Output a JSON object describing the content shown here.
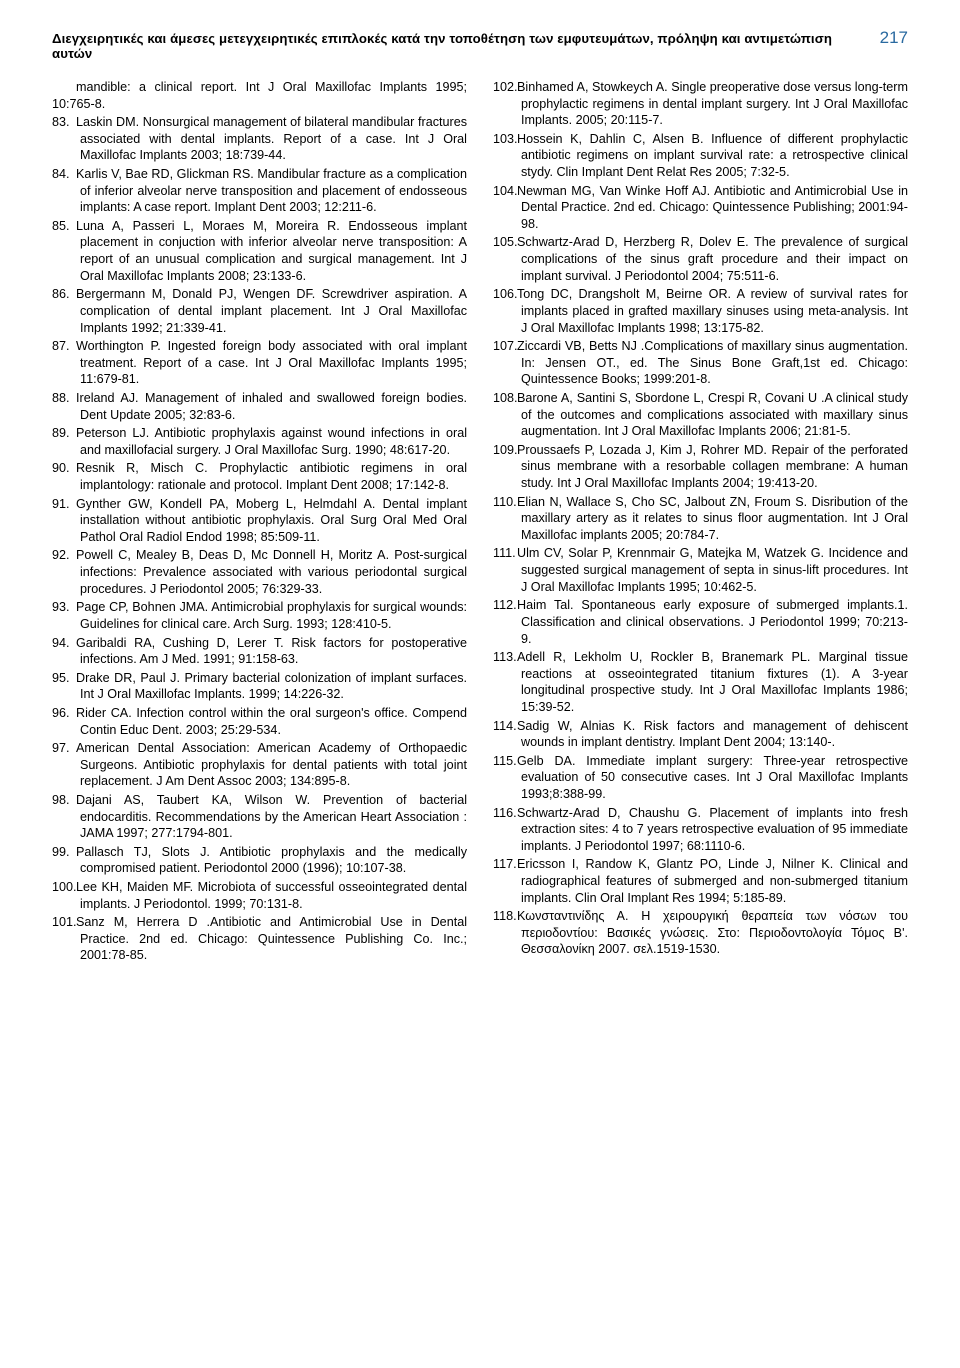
{
  "header": {
    "title": "Διεγχειρητικές και άμεσες μετεγχειρητικές επιπλοκές κατά την τοποθέτηση των εμφυτευμάτων, πρόληψη και  αντιμετώπιση αυτών",
    "page_number": "217"
  },
  "lead": "mandible: a clinical report. Int J Oral Maxillofac Implants 1995; 10:765-8.",
  "references": [
    {
      "n": "83.",
      "t": "Laskin DM. Nonsurgical management of bilateral mandibular fractures associated with dental implants. Report of a case. Int J Oral Maxillofac Implants 2003; 18:739-44."
    },
    {
      "n": "84.",
      "t": "Karlis V, Bae RD, Glickman RS. Mandibular fracture as a complication of inferior alveolar nerve transposition and placement of endosseous implants: A case report. Implant Dent 2003; 12:211-6."
    },
    {
      "n": "85.",
      "t": "Luna A, Passeri L, Moraes M, Moreira R. Endosseous implant placement in conjuction with inferior alveolar nerve transposition: A report of an unusual complication and surgical management. Int J Oral Maxillofac Implants 2008; 23:133-6."
    },
    {
      "n": "86.",
      "t": "Bergermann M, Donald PJ, Wengen DF. Screwdriver aspiration. A complication of dental implant placement. Int J Oral Maxillofac Implants 1992; 21:339-41."
    },
    {
      "n": "87.",
      "t": "Worthington P. Ingested foreign body associated with oral implant treatment. Report of a case. Int J Oral Maxillofac Implants 1995; 11:679-81."
    },
    {
      "n": "88.",
      "t": "Ireland AJ. Management of inhaled and swallowed foreign bodies. Dent Update 2005; 32:83-6."
    },
    {
      "n": "89.",
      "t": "Peterson LJ. Antibiotic prophylaxis against wound infections in oral and maxillofacial surgery. J Oral Maxillofac Surg. 1990; 48:617-20."
    },
    {
      "n": "90.",
      "t": "Resnik R, Misch C. Prophylactic antibiotic regimens in oral implantology: rationale and protocol. Implant Dent 2008; 17:142-8."
    },
    {
      "n": "91.",
      "t": "Gynther GW, Kondell PA, Moberg L, Helmdahl A. Dental implant installation without antibiotic prophylaxis. Oral Surg Oral Med Oral Pathol Oral Radiol Endod 1998; 85:509-11."
    },
    {
      "n": "92.",
      "t": "Powell C, Mealey B, Deas D, Mc Donnell H, Moritz A. Post-surgical infections: Prevalence associated with various periodontal surgical procedures. J Periodontol 2005; 76:329-33."
    },
    {
      "n": "93.",
      "t": "Page CP, Bohnen JMA. Antimicrobial prophylaxis for surgical wounds: Guidelines for clinical care. Arch Surg. 1993; 128:410-5."
    },
    {
      "n": "94.",
      "t": "Garibaldi RA, Cushing D, Lerer T. Risk factors for postoperative infections. Am J Med. 1991; 91:158-63."
    },
    {
      "n": "95.",
      "t": "Drake DR, Paul J. Primary bacterial colonization of implant surfaces. Int J Oral Maxillofac Implants. 1999; 14:226-32."
    },
    {
      "n": "96.",
      "t": "Rider CA. Infection control within the oral surgeon's office. Compend Contin Educ Dent. 2003; 25:29-534."
    },
    {
      "n": "97.",
      "t": "American Dental Association: American Academy of Orthopaedic Surgeons. Antibiotic prophylaxis for dental patients with total joint replacement. J Am Dent Assoc 2003; 134:895-8."
    },
    {
      "n": "98.",
      "t": "Dajani AS, Taubert KA, Wilson W. Prevention of bacterial endocarditis. Recommendations by the American Heart Association : JAMA 1997; 277:1794-801."
    },
    {
      "n": "99.",
      "t": "Pallasch TJ, Slots J. Antibiotic prophylaxis and the medically compromised patient. Periodontol 2000 (1996); 10:107-38."
    },
    {
      "n": "100.",
      "t": "Lee KH, Maiden MF. Microbiota of successful osseointegrated dental implants. J Periodontol. 1999; 70:131-8."
    },
    {
      "n": "101.",
      "t": "Sanz M, Herrera D .Antibiotic and Antimicrobial Use in Dental Practice. 2nd ed. Chicago: Quintessence Publishing Co. Inc.; 2001:78-85."
    },
    {
      "n": "102.",
      "t": "Binhamed A, Stowkeych A. Single preoperative dose versus long-term prophylactic regimens in dental implant surgery. Int J Oral Maxillofac Implants. 2005; 20:115-7."
    },
    {
      "n": "103.",
      "t": "Hossein K, Dahlin C, Alsen B. Influence of different prophylactic antibiotic regimens on implant survival rate: a retrospective clinical stydy. Clin Implant Dent Relat Res 2005; 7:32-5."
    },
    {
      "n": "104.",
      "t": "Newman MG, Van Winke Hoff AJ. Antibiotic and Antimicrobial Use in Dental Practice. 2nd ed. Chicago: Quintessence Publishing; 2001:94-98."
    },
    {
      "n": "105.",
      "t": "Schwartz-Arad D, Herzberg R, Dolev E. The prevalence of surgical complications of the sinus graft procedure and their impact on implant survival. J Periodontol 2004; 75:511-6."
    },
    {
      "n": "106.",
      "t": "Tong DC, Drangsholt M, Beirne OR. A review of survival rates for implants placed in grafted maxillary sinuses using meta-analysis. Int J Oral Maxillofac Implants 1998; 13:175-82."
    },
    {
      "n": "107.",
      "t": "Ziccardi VB, Betts NJ .Complications of maxillary sinus augmentation. In: Jensen OT., ed. The Sinus Bone Graft,1st ed. Chicago: Quintessence Books; 1999:201-8."
    },
    {
      "n": "108.",
      "t": "Barone A, Santini S, Sbordone L, Crespi R, Covani U .A clinical study of the outcomes and complications associated with maxillary sinus augmentation. Int J Oral Maxillofac Implants 2006; 21:81-5."
    },
    {
      "n": "109.",
      "t": "Proussaefs P, Lozada J, Kim J, Rohrer MD. Repair of the perforated sinus membrane with a resorbable collagen membrane: A human study. Int J Oral Maxillofac Implants 2004; 19:413-20."
    },
    {
      "n": "110.",
      "t": "Elian N,  Wallace S, Cho SC, Jalbout  ZN, Froum S. Disribution of the maxillary artery as it relates  to sinus floor augmentation. Int J Oral Maxillofac implants 2005; 20:784-7."
    },
    {
      "n": "111.",
      "t": "Ulm CV, Solar P, Krennmair G, Matejka M, Watzek G. Incidence and suggested surgical management of septa in sinus-lift  procedures. Int J Oral Maxillofac Implants 1995; 10:462-5."
    },
    {
      "n": "112.",
      "t": "Haim Tal. Spontaneous early exposure of submerged implants.1. Classification and clinical observations. J Periodontol 1999; 70:213-9."
    },
    {
      "n": "113.",
      "t": "Adell R, Lekholm U, Rockler B, Branemark PL. Marginal tissue reactions at osseointegrated titanium fixtures (1). A 3-year longitudinal prospective study. Int J Oral Maxillofac Implants 1986; 15:39-52."
    },
    {
      "n": "114.",
      "t": "Sadig W, Alnias K. Risk factors and management of dehiscent wounds in implant dentistry. Implant Dent 2004; 13:140-."
    },
    {
      "n": "115.",
      "t": "Gelb DA. Immediate implant surgery: Three-year retrospective evaluation of 50 consecutive cases. Int  J Oral Maxillofac  Implants 1993;8:388-99."
    },
    {
      "n": "116.",
      "t": "Schwartz-Arad D, Chaushu G. Placement of implants into fresh extraction sites: 4 to 7 years retrospective evaluation of 95  immediate implants. J Periodontol 1997; 68:1110-6."
    },
    {
      "n": "117.",
      "t": "Ericsson I, Randow K, Glantz PO, Linde J, Nilner K. Clinical and radiographical features of submerged and non-submerged titanium implants. Clin Oral Implant Res 1994; 5:185-89."
    },
    {
      "n": "118.",
      "t": "Κωνσταντινίδης  Α. Η χειρουργική θεραπεία των νόσων του περιοδοντίου: Βασικές γνώσεις. Στο: Περιοδοντολογία Τόμος Β'.  Θεσσαλονίκη  2007. σελ.1519-1530."
    }
  ]
}
